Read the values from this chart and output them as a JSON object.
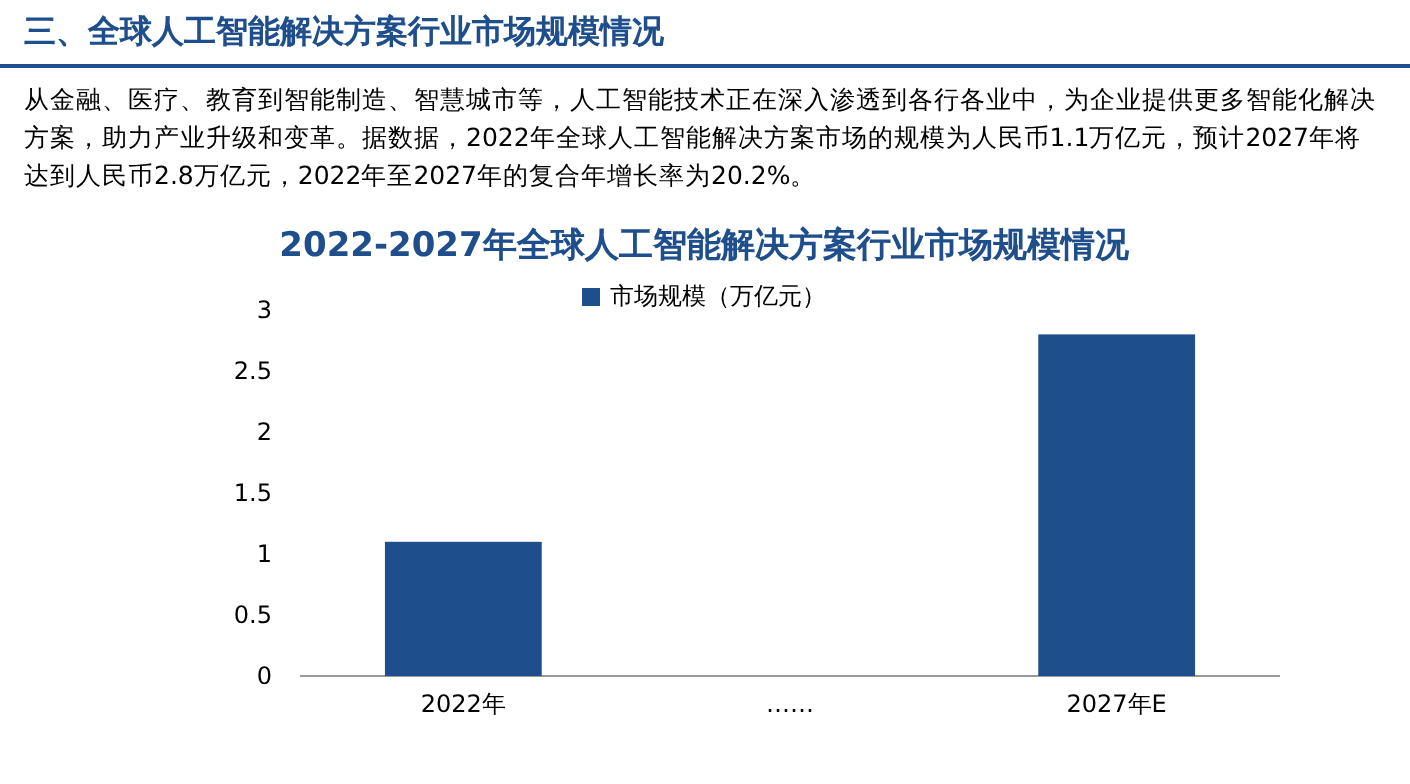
{
  "chart_data": {
    "type": "bar",
    "title": "三、全球人工智能解决方案行业市场规模情况",
    "subtitle": "2022-2027年全球人工智能解决方案行业市场规模情况",
    "annotations": [
      "从金融、医疗、教育到智能制造、智慧城市等，人工智能技术正在深入渗透到各行各业中，为企业提供更多智能化解决方案，助力产业升级和变革。据数据，2022年全球人工智能解决方案市场的规模为人民币1.1万亿元，预计2027年将达到人民币2.8万亿元，2022年至2027年的复合年增长率为20.2%。"
    ],
    "categories": [
      "2022年",
      "……",
      "2027年E"
    ],
    "series": [
      {
        "name": "市场规模（万亿元）",
        "color": "#1f4e8c",
        "values": [
          1.1,
          null,
          2.8
        ]
      }
    ],
    "ylim": [
      0,
      3
    ],
    "yticks": [
      0,
      {
        "value": 0.5,
        "label": "0.5"
      },
      1,
      {
        "value": 1.5,
        "label": "1.5"
      },
      2,
      {
        "value": 2.5,
        "label": "2.5"
      },
      3
    ],
    "legend": "top"
  }
}
